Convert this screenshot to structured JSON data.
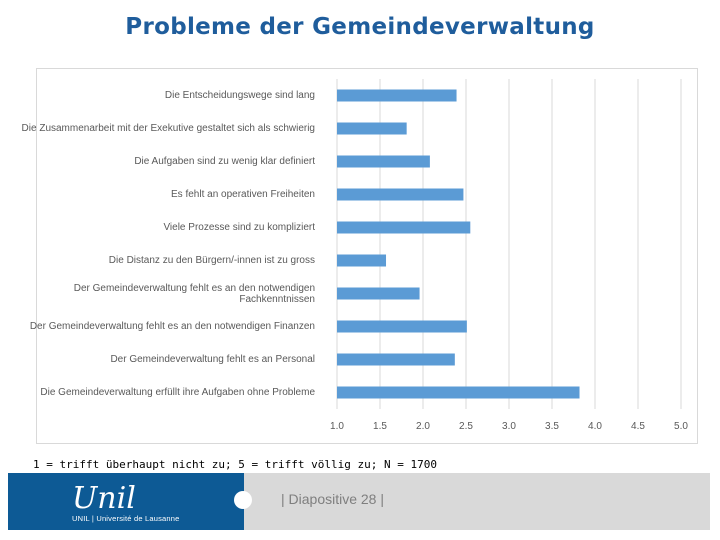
{
  "page": {
    "title": "Probleme der Gemeindeverwaltung",
    "footnote": "1 = trifft überhaupt nicht zu; 5 = trifft völlig zu; N = 1700",
    "slide_number": "| Diapositive 28 |"
  },
  "logo": {
    "mark": "Unil",
    "subtitle": "UNIL | Université de Lausanne"
  },
  "colors": {
    "bar": "#5b9bd5",
    "title": "#1f5d9c",
    "grid": "#d9d9d9",
    "footer": "#0d5a95"
  },
  "chart_data": {
    "type": "bar",
    "orientation": "horizontal",
    "title": "",
    "xlabel": "",
    "ylabel": "",
    "xlim": [
      1.0,
      5.0
    ],
    "ticks": [
      "1.0",
      "1.5",
      "2.0",
      "2.5",
      "3.0",
      "3.5",
      "4.0",
      "4.5",
      "5.0"
    ],
    "grid": true,
    "categories": [
      "Die Entscheidungswege sind lang",
      "Die Zusammenarbeit mit der Exekutive gestaltet sich als schwierig",
      "Die Aufgaben sind zu wenig klar definiert",
      "Es fehlt an operativen Freiheiten",
      "Viele Prozesse sind zu kompliziert",
      "Die Distanz zu den Bürgern/-innen ist zu gross",
      "Der Gemeindeverwaltung fehlt es an den notwendigen Fachkenntnissen",
      "Der Gemeindeverwaltung fehlt es an den notwendigen Finanzen",
      "Der Gemeindeverwaltung fehlt es an Personal",
      "Die Gemeindeverwaltung erfüllt ihre Aufgaben ohne Probleme"
    ],
    "values": [
      2.39,
      1.81,
      2.08,
      2.47,
      2.55,
      1.57,
      1.96,
      2.51,
      2.37,
      3.82
    ]
  }
}
